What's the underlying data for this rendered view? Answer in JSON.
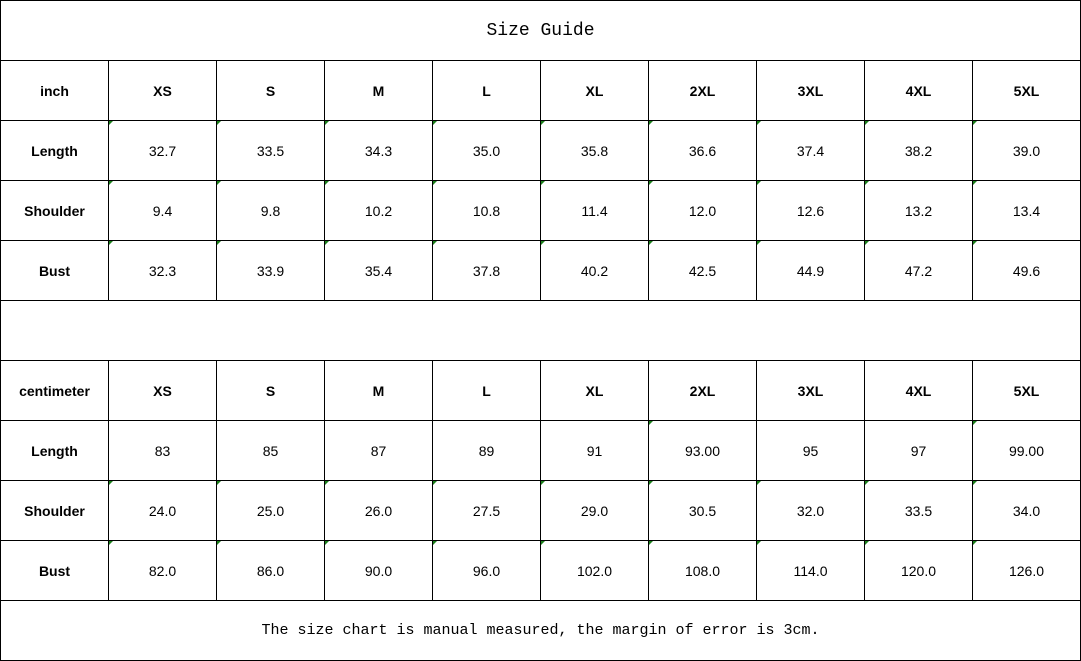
{
  "title": "Size Guide",
  "sizes": [
    "XS",
    "S",
    "M",
    "L",
    "XL",
    "2XL",
    "3XL",
    "4XL",
    "5XL"
  ],
  "inch": {
    "unit": "inch",
    "rows": [
      {
        "label": "Length",
        "values": [
          "32.7",
          "33.5",
          "34.3",
          "35.0",
          "35.8",
          "36.6",
          "37.4",
          "38.2",
          "39.0"
        ]
      },
      {
        "label": "Shoulder",
        "values": [
          "9.4",
          "9.8",
          "10.2",
          "10.8",
          "11.4",
          "12.0",
          "12.6",
          "13.2",
          "13.4"
        ]
      },
      {
        "label": "Bust",
        "values": [
          "32.3",
          "33.9",
          "35.4",
          "37.8",
          "40.2",
          "42.5",
          "44.9",
          "47.2",
          "49.6"
        ]
      }
    ]
  },
  "cm": {
    "unit": "centimeter",
    "rows": [
      {
        "label": "Length",
        "values": [
          "83",
          "85",
          "87",
          "89",
          "91",
          "93.00",
          "95",
          "97",
          "99.00"
        ]
      },
      {
        "label": "Shoulder",
        "values": [
          "24.0",
          "25.0",
          "26.0",
          "27.5",
          "29.0",
          "30.5",
          "32.0",
          "33.5",
          "34.0"
        ]
      },
      {
        "label": "Bust",
        "values": [
          "82.0",
          "86.0",
          "90.0",
          "96.0",
          "102.0",
          "108.0",
          "114.0",
          "120.0",
          "126.0"
        ]
      }
    ]
  },
  "footer": "The size chart is manual measured, the margin of error is 3cm.",
  "marker_color": "#1a7f1a"
}
